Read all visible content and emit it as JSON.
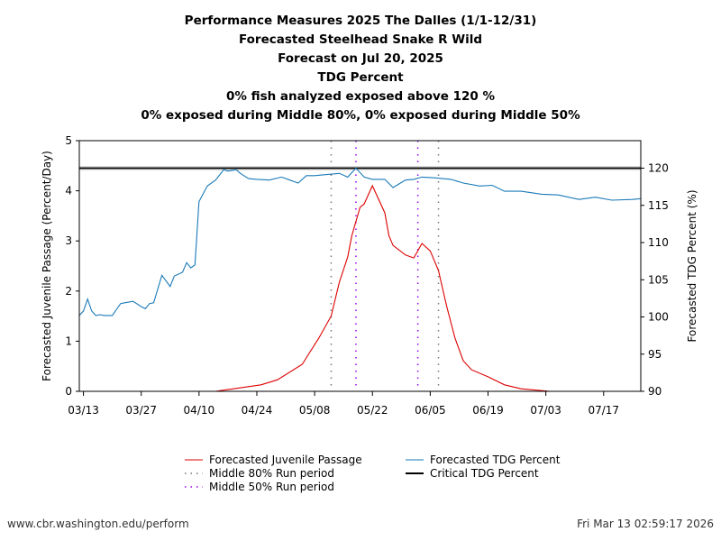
{
  "titles": [
    "Performance Measures 2025 The Dalles (1/1-12/31)",
    "Forecasted Steelhead Snake R Wild",
    "Forecast on Jul 20, 2025",
    "TDG Percent",
    "0% fish analyzed exposed above 120 %",
    "0% exposed during Middle 80%, 0% exposed during Middle 50%"
  ],
  "footer": {
    "left": "www.cbr.washington.edu/perform",
    "right": "Fri Mar 13 02:59:17 2026"
  },
  "chart_data": {
    "type": "line",
    "xlim": [
      "2025-03-12",
      "2025-07-26"
    ],
    "x_ticks": [
      "2025-03-13",
      "2025-03-27",
      "2025-04-10",
      "2025-04-24",
      "2025-05-08",
      "2025-05-22",
      "2025-06-05",
      "2025-06-19",
      "2025-07-03",
      "2025-07-17"
    ],
    "x_tick_labels": [
      "03/13",
      "03/27",
      "04/10",
      "04/24",
      "05/08",
      "05/22",
      "06/05",
      "06/19",
      "07/03",
      "07/17"
    ],
    "ylabel_left": "Forecasted Juvenile Passage (Percent/Day)",
    "ylim_left": [
      0,
      5
    ],
    "yticks_left": [
      "0",
      "1",
      "2",
      "3",
      "4",
      "5"
    ],
    "ylabel_right": "Forecasted TDG Percent (%)",
    "ylim_right": [
      90,
      123.7
    ],
    "yticks_right": [
      "90",
      "95",
      "100",
      "105",
      "110",
      "115",
      "120"
    ],
    "colors": {
      "passage": "#dd0000",
      "tdg": "#1a7ab8",
      "mid80": "#777777",
      "mid50": "#9900ee",
      "critical": "#000000"
    },
    "legend": [
      {
        "label": "Forecasted Juvenile Passage",
        "key": "passage",
        "style": "solid"
      },
      {
        "label": "Forecasted TDG Percent",
        "key": "tdg",
        "style": "solid"
      },
      {
        "label": "Middle 80% Run period",
        "key": "mid80",
        "style": "dotted"
      },
      {
        "label": "Critical TDG Percent",
        "key": "critical",
        "style": "thick"
      },
      {
        "label": "Middle 50% Run period",
        "key": "mid50",
        "style": "dotted"
      }
    ],
    "critical_tdg": 120,
    "middle80": [
      "2025-05-12",
      "2025-06-07"
    ],
    "middle50": [
      "2025-05-18",
      "2025-06-02"
    ],
    "series": [
      {
        "name": "Forecasted Juvenile Passage",
        "axis": "left",
        "key": "passage",
        "points": [
          [
            "2025-04-14",
            0
          ],
          [
            "2025-04-25",
            0.13
          ],
          [
            "2025-04-29",
            0.23
          ],
          [
            "2025-05-05",
            0.54
          ],
          [
            "2025-05-07",
            0.8
          ],
          [
            "2025-05-09",
            1.06
          ],
          [
            "2025-05-12",
            1.5
          ],
          [
            "2025-05-14",
            2.18
          ],
          [
            "2025-05-16",
            2.68
          ],
          [
            "2025-05-17",
            3.1
          ],
          [
            "2025-05-19",
            3.67
          ],
          [
            "2025-05-20",
            3.74
          ],
          [
            "2025-05-22",
            4.1
          ],
          [
            "2025-05-25",
            3.56
          ],
          [
            "2025-05-26",
            3.1
          ],
          [
            "2025-05-27",
            2.91
          ],
          [
            "2025-05-30",
            2.72
          ],
          [
            "2025-06-01",
            2.66
          ],
          [
            "2025-06-03",
            2.95
          ],
          [
            "2025-06-05",
            2.8
          ],
          [
            "2025-06-07",
            2.41
          ],
          [
            "2025-06-09",
            1.69
          ],
          [
            "2025-06-11",
            1.06
          ],
          [
            "2025-06-13",
            0.61
          ],
          [
            "2025-06-15",
            0.43
          ],
          [
            "2025-06-19",
            0.29
          ],
          [
            "2025-06-23",
            0.13
          ],
          [
            "2025-06-27",
            0.05
          ],
          [
            "2025-07-04",
            0
          ]
        ]
      },
      {
        "name": "Forecasted TDG Percent",
        "axis": "right",
        "key": "tdg",
        "points": [
          [
            "2025-03-12",
            100.2
          ],
          [
            "2025-03-13",
            100.8
          ],
          [
            "2025-03-14",
            102.4
          ],
          [
            "2025-03-15",
            100.8
          ],
          [
            "2025-03-16",
            100.2
          ],
          [
            "2025-03-17",
            100.3
          ],
          [
            "2025-03-18",
            100.2
          ],
          [
            "2025-03-20",
            100.2
          ],
          [
            "2025-03-22",
            101.8
          ],
          [
            "2025-03-23",
            101.9
          ],
          [
            "2025-03-25",
            102.1
          ],
          [
            "2025-03-27",
            101.4
          ],
          [
            "2025-03-28",
            101.1
          ],
          [
            "2025-03-29",
            101.8
          ],
          [
            "2025-03-30",
            101.9
          ],
          [
            "2025-04-01",
            105.6
          ],
          [
            "2025-04-03",
            104.1
          ],
          [
            "2025-04-04",
            105.5
          ],
          [
            "2025-04-06",
            106
          ],
          [
            "2025-04-07",
            107.3
          ],
          [
            "2025-04-08",
            106.6
          ],
          [
            "2025-04-09",
            107
          ],
          [
            "2025-04-10",
            115.5
          ],
          [
            "2025-04-12",
            117.6
          ],
          [
            "2025-04-14",
            118.4
          ],
          [
            "2025-04-16",
            119.8
          ],
          [
            "2025-04-17",
            119.6
          ],
          [
            "2025-04-19",
            119.8
          ],
          [
            "2025-04-20",
            119.3
          ],
          [
            "2025-04-22",
            118.6
          ],
          [
            "2025-04-24",
            118.5
          ],
          [
            "2025-04-27",
            118.4
          ],
          [
            "2025-04-30",
            118.8
          ],
          [
            "2025-05-02",
            118.4
          ],
          [
            "2025-05-04",
            118
          ],
          [
            "2025-05-06",
            119
          ],
          [
            "2025-05-08",
            119
          ],
          [
            "2025-05-10",
            119.1
          ],
          [
            "2025-05-14",
            119.3
          ],
          [
            "2025-05-16",
            118.8
          ],
          [
            "2025-05-18",
            120
          ],
          [
            "2025-05-20",
            118.8
          ],
          [
            "2025-05-22",
            118.5
          ],
          [
            "2025-05-25",
            118.5
          ],
          [
            "2025-05-27",
            117.4
          ],
          [
            "2025-05-30",
            118.4
          ],
          [
            "2025-06-01",
            118.5
          ],
          [
            "2025-06-03",
            118.8
          ],
          [
            "2025-06-06",
            118.7
          ],
          [
            "2025-06-10",
            118.5
          ],
          [
            "2025-06-13",
            118
          ],
          [
            "2025-06-17",
            117.6
          ],
          [
            "2025-06-20",
            117.7
          ],
          [
            "2025-06-23",
            116.9
          ],
          [
            "2025-06-27",
            116.9
          ],
          [
            "2025-07-02",
            116.5
          ],
          [
            "2025-07-06",
            116.4
          ],
          [
            "2025-07-11",
            115.8
          ],
          [
            "2025-07-15",
            116.1
          ],
          [
            "2025-07-19",
            115.7
          ],
          [
            "2025-07-24",
            115.8
          ],
          [
            "2025-07-26",
            115.9
          ]
        ]
      }
    ]
  }
}
